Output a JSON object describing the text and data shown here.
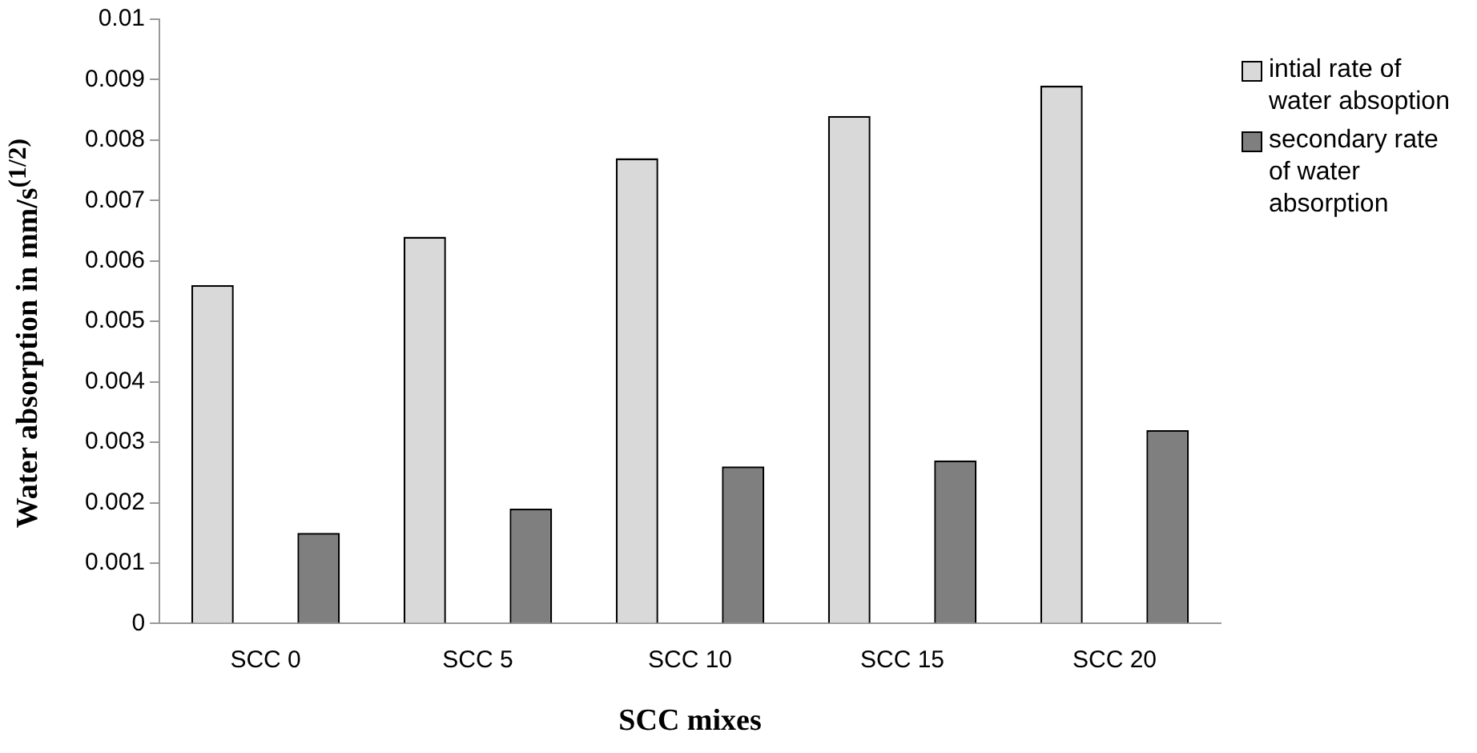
{
  "chart_data": {
    "type": "bar",
    "xlabel": "SCC mixes",
    "ylabel": "Water absorption in mm/s$^{(1/2)}$",
    "categories": [
      "SCC 0",
      "SCC 5",
      "SCC 10",
      "SCC 15",
      "SCC 20"
    ],
    "series": [
      {
        "name": "intial rate of water absoption",
        "color": "#d9d9d9",
        "values": [
          0.0056,
          0.0064,
          0.0077,
          0.0084,
          0.0089
        ]
      },
      {
        "name": "secondary rate of water absorption",
        "color": "#7f7f7f",
        "values": [
          0.0015,
          0.0019,
          0.0026,
          0.0027,
          0.0032
        ]
      }
    ],
    "ylim": [
      0,
      0.01
    ],
    "yticks": [
      0,
      0.001,
      0.002,
      0.003,
      0.004,
      0.005,
      0.006,
      0.007,
      0.008,
      0.009,
      0.01
    ],
    "grid": false,
    "legend": "right"
  }
}
